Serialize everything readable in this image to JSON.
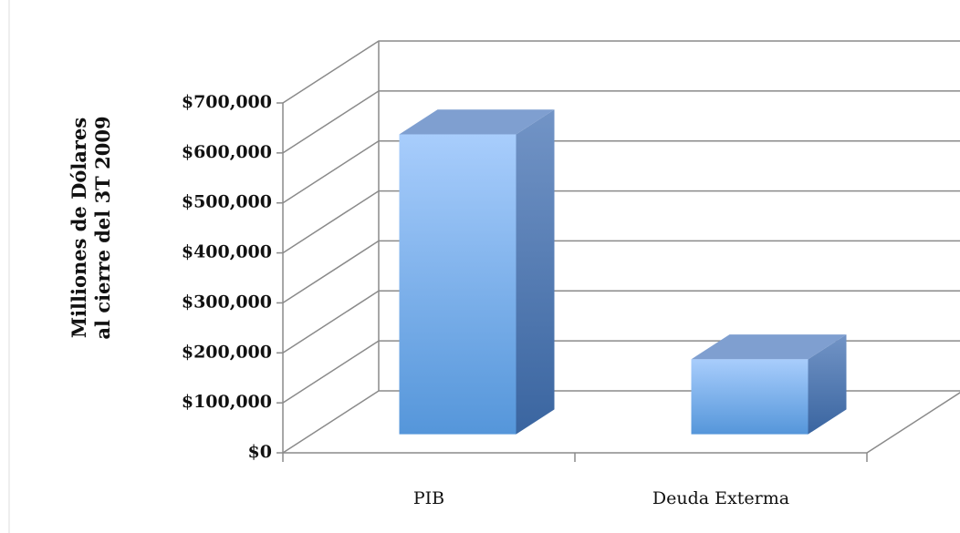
{
  "chart_data": {
    "type": "bar3d",
    "y_label": [
      "Milliones de Dólares",
      "al cierre del 3T 2009"
    ],
    "categories": [
      "PIB",
      "Deuda Exterma"
    ],
    "values": [
      600000,
      150000
    ],
    "color": "#6fa8e8",
    "ylim": [
      0,
      700000
    ],
    "yticks": [
      {
        "value": 0,
        "label": "$0"
      },
      {
        "value": 100000,
        "label": "$100,000"
      },
      {
        "value": 200000,
        "label": "$200,000"
      },
      {
        "value": 300000,
        "label": "$300,000"
      },
      {
        "value": 400000,
        "label": "$400,000"
      },
      {
        "value": 500000,
        "label": "$500,000"
      },
      {
        "value": 600000,
        "label": "$600,000"
      },
      {
        "value": 700000,
        "label": "$700,000"
      }
    ],
    "grid": true
  }
}
